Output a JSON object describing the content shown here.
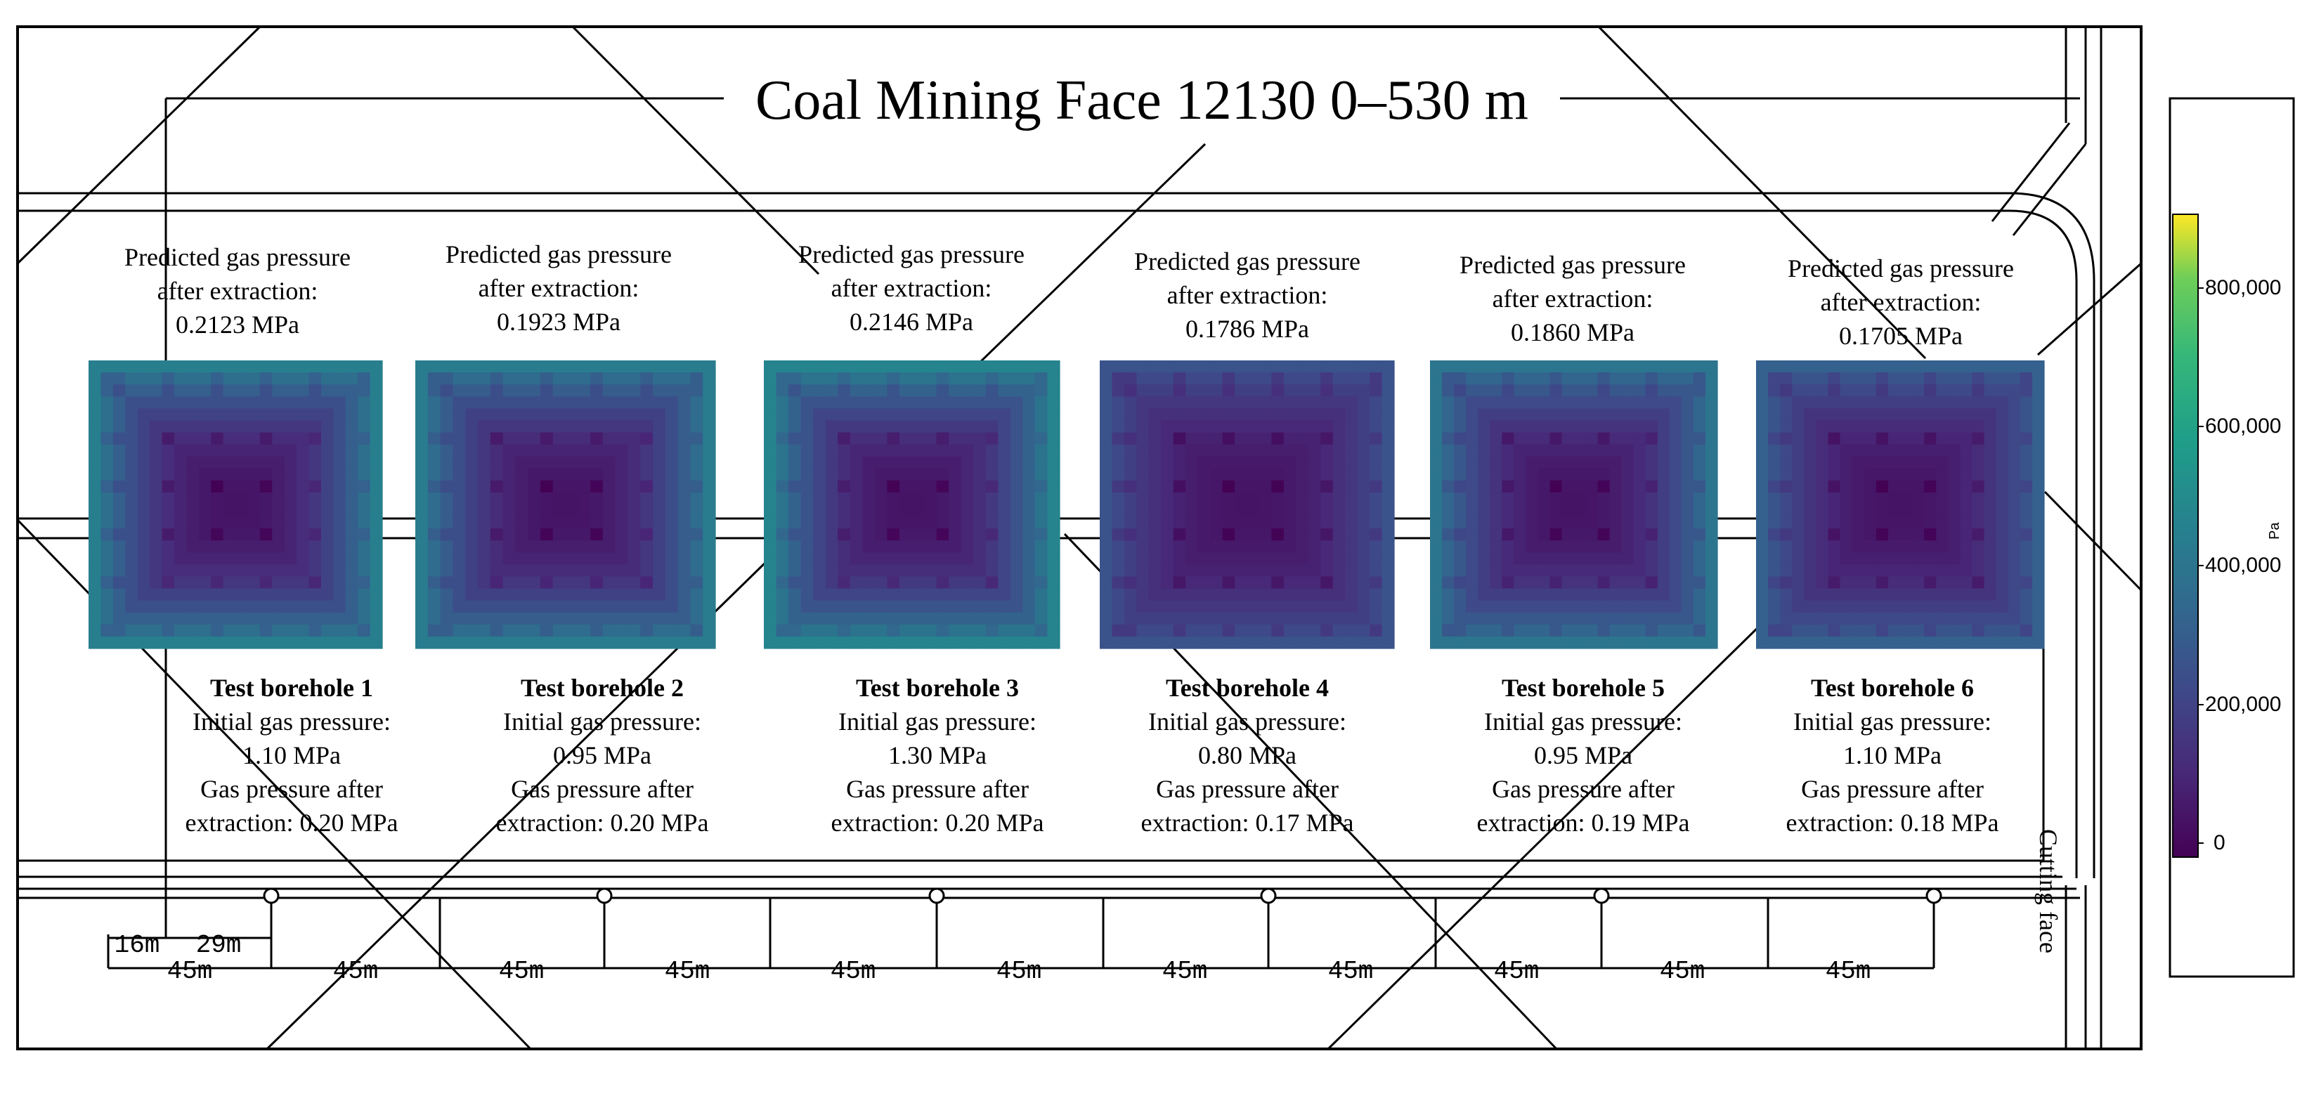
{
  "title": "Coal Mining Face 12130 0–530 m",
  "cutting_face_label": "Cutting face",
  "boreholes": [
    {
      "title": "Test borehole 1",
      "initial_label": "Initial gas pressure:",
      "initial_value": "1.10 MPa",
      "after_label": "Gas pressure after",
      "after_value": "extraction: 0.20 MPa",
      "pred_line1": "Predicted gas pressure",
      "pred_line2": "after extraction:",
      "pred_value": "0.2123 MPa",
      "color_scale": 0.62
    },
    {
      "title": "Test borehole 2",
      "initial_label": "Initial gas pressure:",
      "initial_value": "0.95 MPa",
      "after_label": "Gas pressure after",
      "after_value": "extraction: 0.20 MPa",
      "pred_line1": "Predicted gas pressure",
      "pred_line2": "after extraction:",
      "pred_value": "0.1923 MPa",
      "color_scale": 0.6
    },
    {
      "title": "Test borehole 3",
      "initial_label": "Initial gas pressure:",
      "initial_value": "1.30 MPa",
      "after_label": "Gas pressure after",
      "after_value": "extraction: 0.20 MPa",
      "pred_line1": "Predicted gas pressure",
      "pred_line2": "after extraction:",
      "pred_value": "0.2146 MPa",
      "color_scale": 0.66
    },
    {
      "title": "Test borehole 4",
      "initial_label": "Initial gas pressure:",
      "initial_value": "0.80 MPa",
      "after_label": "Gas pressure after",
      "after_value": "extraction: 0.17 MPa",
      "pred_line1": "Predicted gas pressure",
      "pred_line2": "after extraction:",
      "pred_value": "0.1786 MPa",
      "color_scale": 0.34
    },
    {
      "title": "Test borehole 5",
      "initial_label": "Initial gas pressure:",
      "initial_value": "0.95 MPa",
      "after_label": "Gas pressure after",
      "after_value": "extraction: 0.19 MPa",
      "pred_line1": "Predicted gas pressure",
      "pred_line2": "after extraction:",
      "pred_value": "0.1860 MPa",
      "color_scale": 0.55
    },
    {
      "title": "Test borehole 6",
      "initial_label": "Initial gas pressure:",
      "initial_value": "1.10 MPa",
      "after_label": "Gas pressure after",
      "after_value": "extraction: 0.18 MPa",
      "pred_line1": "Predicted gas pressure",
      "pred_line2": "after extraction:",
      "pred_value": "0.1705 MPa",
      "color_scale": 0.42
    }
  ],
  "spacing_labels": {
    "first": "16m",
    "second": "29m",
    "interval": "45m",
    "interval_count": 11
  },
  "colorbar": {
    "unit": "Pa",
    "ticks": [
      "800,000",
      "600,000",
      "400,000",
      "200,000",
      "0"
    ],
    "colors": [
      "#fde725",
      "#35b779",
      "#21918c",
      "#31688e",
      "#443983",
      "#440154"
    ]
  }
}
